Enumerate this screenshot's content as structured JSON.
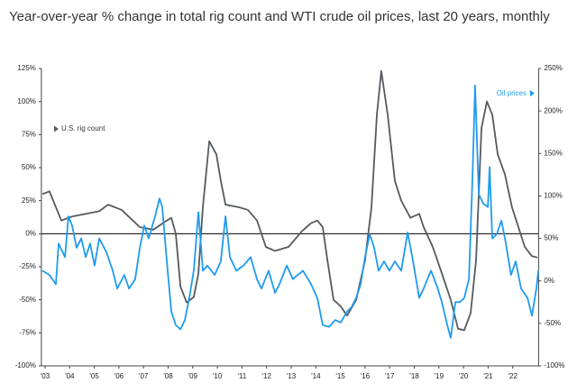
{
  "chart_data": {
    "type": "line",
    "title": "Year-over-year % change in total rig count and WTI crude oil prices, last 20 years, monthly",
    "xlim": [
      2002.85,
      2023.05
    ],
    "xticks": [
      {
        "value": 2003,
        "label": "'03"
      },
      {
        "value": 2004,
        "label": "'04"
      },
      {
        "value": 2005,
        "label": "'05"
      },
      {
        "value": 2006,
        "label": "'06"
      },
      {
        "value": 2007,
        "label": "'07"
      },
      {
        "value": 2008,
        "label": "'08"
      },
      {
        "value": 2009,
        "label": "'09"
      },
      {
        "value": 2010,
        "label": "'10"
      },
      {
        "value": 2011,
        "label": "'11"
      },
      {
        "value": 2012,
        "label": "'12"
      },
      {
        "value": 2013,
        "label": "'13"
      },
      {
        "value": 2014,
        "label": "'14"
      },
      {
        "value": 2015,
        "label": "'15"
      },
      {
        "value": 2016,
        "label": "'16"
      },
      {
        "value": 2017,
        "label": "'17"
      },
      {
        "value": 2018,
        "label": "'18"
      },
      {
        "value": 2019,
        "label": "'19"
      },
      {
        "value": 2020,
        "label": "'20"
      },
      {
        "value": 2021,
        "label": "'21"
      },
      {
        "value": 2022,
        "label": "'22"
      }
    ],
    "ylim": [
      -100,
      125
    ],
    "yticks": [
      {
        "value": -100,
        "label": "-100%"
      },
      {
        "value": -75,
        "label": "-75%"
      },
      {
        "value": -50,
        "label": "-50%"
      },
      {
        "value": -25,
        "label": "-25%"
      },
      {
        "value": 0,
        "label": "0%"
      },
      {
        "value": 25,
        "label": "25%"
      },
      {
        "value": 50,
        "label": "50%"
      },
      {
        "value": 75,
        "label": "75%"
      },
      {
        "value": 100,
        "label": "100%"
      },
      {
        "value": 125,
        "label": "125%"
      }
    ],
    "y2lim": [
      -100,
      250
    ],
    "y2ticks": [
      {
        "value": -100,
        "label": "-100%"
      },
      {
        "value": -50,
        "label": "-50%"
      },
      {
        "value": 0,
        "label": "0%"
      },
      {
        "value": 50,
        "label": "50%"
      },
      {
        "value": 100,
        "label": "100%"
      },
      {
        "value": 150,
        "label": "150%"
      },
      {
        "value": 200,
        "label": "200%"
      },
      {
        "value": 250,
        "label": "250%"
      }
    ],
    "series": [
      {
        "name": "U.S. rig count",
        "color": "#555a5f",
        "axis": "y",
        "x": [
          2002.89,
          2003.18,
          2003.66,
          2004.1,
          2005.2,
          2005.56,
          2006.11,
          2006.85,
          2007.4,
          2007.95,
          2008.13,
          2008.31,
          2008.5,
          2008.75,
          2009.04,
          2009.23,
          2009.41,
          2009.67,
          2009.96,
          2010.14,
          2010.33,
          2010.88,
          2011.24,
          2011.61,
          2011.97,
          2012.34,
          2012.89,
          2013.44,
          2013.81,
          2014.06,
          2014.28,
          2014.47,
          2014.72,
          2015.01,
          2015.27,
          2015.64,
          2016.0,
          2016.26,
          2016.48,
          2016.66,
          2016.92,
          2017.21,
          2017.47,
          2017.84,
          2018.2,
          2018.38,
          2018.75,
          2019.12,
          2019.48,
          2019.78,
          2020.03,
          2020.29,
          2020.51,
          2020.73,
          2020.95,
          2021.17,
          2021.39,
          2021.68,
          2021.97,
          2022.23,
          2022.49,
          2022.78,
          2023.0
        ],
        "values": [
          30,
          32,
          10,
          13,
          17,
          22,
          18,
          5,
          3,
          10,
          12,
          0,
          -40,
          -52,
          -48,
          -30,
          20,
          70,
          60,
          40,
          22,
          20,
          18,
          10,
          -10,
          -13,
          -10,
          2,
          8,
          10,
          5,
          -20,
          -50,
          -55,
          -62,
          -50,
          -20,
          20,
          90,
          123,
          90,
          40,
          25,
          12,
          15,
          5,
          -10,
          -30,
          -50,
          -72,
          -73,
          -60,
          -20,
          80,
          100,
          90,
          60,
          45,
          20,
          5,
          -10,
          -17,
          -18
        ]
      },
      {
        "name": "Oil prices",
        "color": "#1e9bf0",
        "axis": "y2",
        "x": [
          2002.89,
          2003.18,
          2003.44,
          2003.55,
          2003.81,
          2003.95,
          2004.1,
          2004.28,
          2004.47,
          2004.65,
          2004.83,
          2005.01,
          2005.2,
          2005.49,
          2005.75,
          2005.93,
          2006.22,
          2006.41,
          2006.66,
          2006.85,
          2007.03,
          2007.21,
          2007.47,
          2007.65,
          2007.76,
          2007.98,
          2008.13,
          2008.31,
          2008.5,
          2008.68,
          2008.86,
          2009.04,
          2009.23,
          2009.41,
          2009.59,
          2009.89,
          2010.14,
          2010.33,
          2010.51,
          2010.77,
          2011.06,
          2011.35,
          2011.61,
          2011.79,
          2012.08,
          2012.34,
          2012.52,
          2012.82,
          2013.07,
          2013.26,
          2013.48,
          2013.81,
          2014.06,
          2014.28,
          2014.54,
          2014.79,
          2015.01,
          2015.27,
          2015.45,
          2015.64,
          2015.82,
          2016.0,
          2016.19,
          2016.37,
          2016.55,
          2016.77,
          2016.99,
          2017.21,
          2017.47,
          2017.73,
          2017.95,
          2018.2,
          2018.38,
          2018.68,
          2018.93,
          2019.12,
          2019.34,
          2019.48,
          2019.67,
          2019.85,
          2020.03,
          2020.22,
          2020.36,
          2020.47,
          2020.62,
          2020.8,
          2020.99,
          2021.06,
          2021.17,
          2021.35,
          2021.54,
          2021.72,
          2021.93,
          2022.12,
          2022.34,
          2022.6,
          2022.78,
          2022.96,
          2023.04
        ],
        "values": [
          12,
          7,
          -4,
          44,
          28,
          76,
          65,
          39,
          50,
          28,
          44,
          18,
          50,
          34,
          12,
          -9,
          7,
          -9,
          2,
          39,
          65,
          50,
          76,
          97,
          87,
          12,
          -36,
          -52,
          -57,
          -46,
          -20,
          12,
          81,
          12,
          18,
          7,
          23,
          76,
          28,
          12,
          18,
          28,
          2,
          -9,
          12,
          -14,
          -4,
          18,
          2,
          7,
          12,
          -4,
          -20,
          -52,
          -54,
          -46,
          -49,
          -36,
          -31,
          -20,
          -4,
          28,
          55,
          39,
          12,
          23,
          12,
          23,
          12,
          57,
          23,
          -20,
          -9,
          12,
          -7,
          -25,
          -52,
          -67,
          -25,
          -25,
          -20,
          2,
          118,
          230,
          102,
          91,
          87,
          134,
          50,
          55,
          71,
          44,
          7,
          23,
          -9,
          -20,
          -41,
          -9,
          12
        ]
      }
    ]
  }
}
